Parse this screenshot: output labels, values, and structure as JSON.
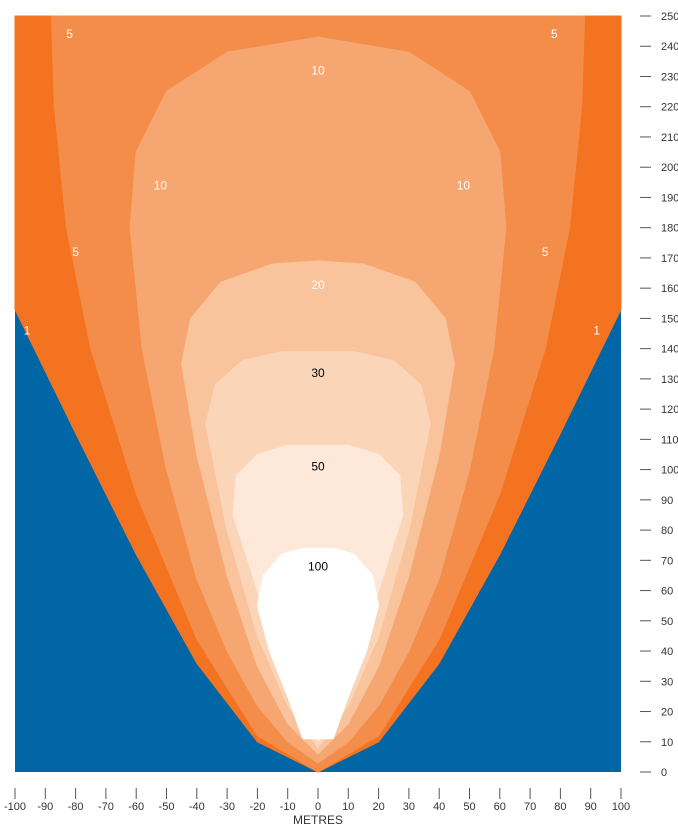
{
  "chart_data": {
    "type": "area",
    "title": "",
    "xlabel": "METRES",
    "ylabel": "",
    "xlim": [
      -100,
      100
    ],
    "ylim": [
      0,
      250
    ],
    "x_ticks": [
      -100,
      -90,
      -80,
      -70,
      -60,
      -50,
      -40,
      -30,
      -20,
      -10,
      0,
      10,
      20,
      30,
      40,
      50,
      60,
      70,
      80,
      90,
      100
    ],
    "y_ticks": [
      0,
      10,
      20,
      30,
      40,
      50,
      60,
      70,
      80,
      90,
      100,
      110,
      120,
      130,
      140,
      150,
      160,
      170,
      180,
      190,
      200,
      210,
      220,
      230,
      240,
      250
    ],
    "grid": false,
    "background_color": "#0066a6",
    "contours": [
      {
        "level": "1",
        "color": "#f47321",
        "max_halfwidth": 100,
        "outline": [
          [
            0,
            0
          ],
          [
            20,
            10
          ],
          [
            40,
            36
          ],
          [
            60,
            72
          ],
          [
            80,
            112
          ],
          [
            100,
            153
          ],
          [
            100,
            250
          ]
        ],
        "label_positions": [
          [
            -96,
            146
          ],
          [
            92,
            146
          ]
        ],
        "label_color": "#ffffff"
      },
      {
        "level": "5",
        "color": "#f58d4a",
        "max_halfwidth": 88,
        "outline": [
          [
            0,
            0
          ],
          [
            20,
            12
          ],
          [
            40,
            44
          ],
          [
            60,
            92
          ],
          [
            75,
            140
          ],
          [
            83,
            180
          ],
          [
            87,
            220
          ],
          [
            88,
            250
          ]
        ],
        "label_positions": [
          [
            -82,
            244
          ],
          [
            78,
            244
          ],
          [
            -80,
            172
          ],
          [
            75,
            172
          ]
        ],
        "label_color": "#ffffff"
      },
      {
        "level": "10",
        "color": "#f6a771",
        "max_halfwidth": 63,
        "outline": [
          [
            0,
            3
          ],
          [
            10,
            10
          ],
          [
            20,
            22
          ],
          [
            30,
            40
          ],
          [
            40,
            64
          ],
          [
            50,
            100
          ],
          [
            58,
            140
          ],
          [
            62,
            180
          ],
          [
            60,
            205
          ],
          [
            50,
            225
          ],
          [
            30,
            238
          ],
          [
            0,
            243
          ]
        ],
        "label_positions": [
          [
            0,
            232
          ],
          [
            -52,
            194
          ],
          [
            48,
            194
          ]
        ],
        "label_color": "#ffffff"
      },
      {
        "level": "20",
        "color": "#f9c39c",
        "max_halfwidth": 45,
        "outline": [
          [
            0,
            6
          ],
          [
            10,
            16
          ],
          [
            20,
            35
          ],
          [
            30,
            65
          ],
          [
            40,
            105
          ],
          [
            45,
            135
          ],
          [
            42,
            150
          ],
          [
            32,
            162
          ],
          [
            15,
            168
          ],
          [
            0,
            169
          ]
        ],
        "label_positions": [
          [
            0,
            161
          ]
        ],
        "label_color": "#ffffff"
      },
      {
        "level": "30",
        "color": "#fbd5b8",
        "max_halfwidth": 37,
        "outline": [
          [
            0,
            8
          ],
          [
            10,
            22
          ],
          [
            20,
            45
          ],
          [
            30,
            80
          ],
          [
            37,
            115
          ],
          [
            34,
            128
          ],
          [
            25,
            136
          ],
          [
            12,
            139
          ],
          [
            0,
            139
          ]
        ],
        "label_positions": [
          [
            0,
            132
          ]
        ],
        "label_color": "#000000"
      },
      {
        "level": "50",
        "color": "#fde8d9",
        "max_halfwidth": 29,
        "outline": [
          [
            0,
            10
          ],
          [
            10,
            30
          ],
          [
            20,
            60
          ],
          [
            28,
            85
          ],
          [
            27,
            98
          ],
          [
            20,
            105
          ],
          [
            10,
            108
          ],
          [
            0,
            108
          ]
        ],
        "label_positions": [
          [
            0,
            101
          ]
        ],
        "label_color": "#000000"
      },
      {
        "level": "100",
        "color": "#ffffff",
        "max_halfwidth": 20,
        "outline": [
          [
            0,
            11
          ],
          [
            5,
            11
          ],
          [
            10,
            25
          ],
          [
            16,
            40
          ],
          [
            20,
            55
          ],
          [
            18,
            65
          ],
          [
            12,
            72
          ],
          [
            5,
            74
          ],
          [
            0,
            74
          ]
        ],
        "label_positions": [
          [
            0,
            68
          ]
        ],
        "label_color": "#000000"
      }
    ]
  }
}
